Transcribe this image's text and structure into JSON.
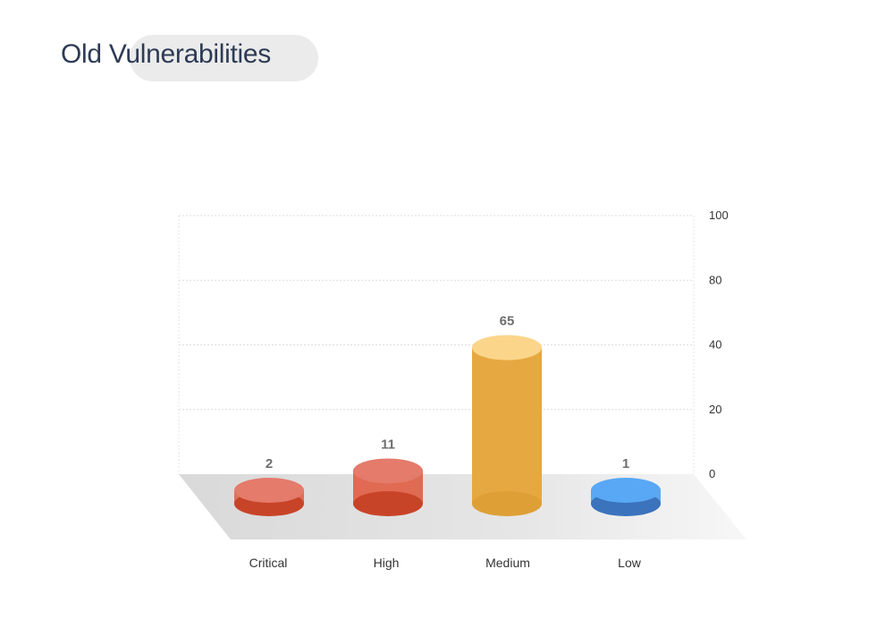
{
  "header": {
    "title": "Old Vulnerabilities"
  },
  "chart_data": {
    "type": "bar",
    "title": "Old Vulnerabilities",
    "categories": [
      "Critical",
      "High",
      "Medium",
      "Low"
    ],
    "values": [
      2,
      11,
      65,
      1
    ],
    "y_ticks": [
      0,
      20,
      40,
      80,
      100
    ],
    "ylim": [
      0,
      100
    ],
    "grid": true,
    "y_axis_side": "right",
    "colors": {
      "Critical": {
        "top": "#e47b6b",
        "body": "#e06f5b",
        "bottom": "#c84428"
      },
      "High": {
        "top": "#e47b6b",
        "body": "#e06a52",
        "bottom": "#c84428"
      },
      "Medium": {
        "top": "#fbd58a",
        "body": "#e6a840",
        "bottom": "#dea036"
      },
      "Low": {
        "top": "#58a8f5",
        "body": "#58a8f5",
        "bottom": "#3b73bd"
      }
    }
  }
}
